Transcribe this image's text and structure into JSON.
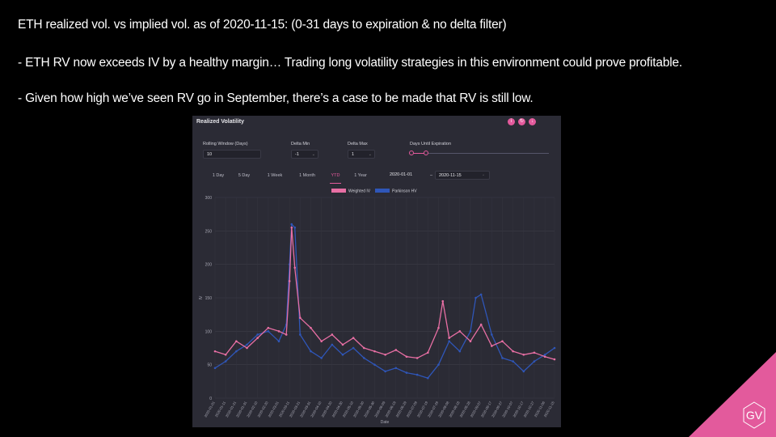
{
  "slide": {
    "line1": "ETH realized vol. vs implied vol. as of 2020-11-15: (0-31 days to expiration & no delta filter)",
    "line2": "- ETH RV now exceeds IV by a healthy margin… Trading long volatility strategies in this environment could prove profitable.",
    "line3": "- Given how high we’ve seen RV go in September, there’s a case to be made that RV is still low."
  },
  "panel": {
    "title": "Realized Volatility",
    "controls": {
      "rolling_label": "Rolling Window (Days)",
      "rolling_value": "10",
      "delta_min_label": "Delta Min",
      "delta_min_value": "-1",
      "delta_max_label": "Delta Max",
      "delta_max_value": "1",
      "days_label": "Days Until Expiration"
    },
    "ranges": [
      "1 Day",
      "5 Day",
      "1 Week",
      "1 Month",
      "YTD",
      "1 Year"
    ],
    "active_range": "YTD",
    "date_from": "2020-01-01",
    "date_sep": "–",
    "date_to": "2020-11-15"
  },
  "logo": {
    "text": "GV",
    "color": "#e35a9c"
  },
  "chart_data": {
    "type": "line",
    "title": "",
    "xlabel": "Date",
    "ylabel": "IV",
    "ylim": [
      0,
      300
    ],
    "yticks": [
      0,
      50,
      100,
      150,
      200,
      250,
      300
    ],
    "grid": true,
    "legend_position": "top-center",
    "x_start": "2020-01-01",
    "x_end": "2020-11-15",
    "x_ticks": [
      "2020-01-01",
      "2020-01-11",
      "2020-01-21",
      "2020-01-31",
      "2020-02-10",
      "2020-02-20",
      "2020-03-01",
      "2020-03-11",
      "2020-03-21",
      "2020-03-31",
      "2020-04-10",
      "2020-04-20",
      "2020-04-30",
      "2020-05-10",
      "2020-05-20",
      "2020-05-30",
      "2020-06-09",
      "2020-06-19",
      "2020-06-29",
      "2020-07-09",
      "2020-07-19",
      "2020-07-29",
      "2020-08-08",
      "2020-08-18",
      "2020-08-28",
      "2020-09-07",
      "2020-09-17",
      "2020-09-27",
      "2020-10-07",
      "2020-10-17",
      "2020-10-27",
      "2020-11-06",
      "2020-11-15"
    ],
    "series": [
      {
        "name": "Weighted IV",
        "color": "#e86fa4",
        "x": [
          "2020-01-01",
          "2020-01-11",
          "2020-01-21",
          "2020-01-31",
          "2020-02-10",
          "2020-02-20",
          "2020-03-01",
          "2020-03-08",
          "2020-03-11",
          "2020-03-13",
          "2020-03-16",
          "2020-03-21",
          "2020-03-31",
          "2020-04-10",
          "2020-04-20",
          "2020-04-30",
          "2020-05-10",
          "2020-05-20",
          "2020-05-30",
          "2020-06-09",
          "2020-06-19",
          "2020-06-29",
          "2020-07-09",
          "2020-07-19",
          "2020-07-29",
          "2020-08-02",
          "2020-08-08",
          "2020-08-18",
          "2020-08-28",
          "2020-09-07",
          "2020-09-17",
          "2020-09-27",
          "2020-10-07",
          "2020-10-17",
          "2020-10-27",
          "2020-11-06",
          "2020-11-15"
        ],
        "y": [
          70,
          65,
          85,
          75,
          90,
          105,
          100,
          95,
          175,
          255,
          195,
          120,
          105,
          85,
          95,
          80,
          90,
          75,
          70,
          65,
          72,
          62,
          60,
          68,
          105,
          145,
          90,
          100,
          85,
          110,
          78,
          85,
          70,
          65,
          68,
          62,
          58
        ]
      },
      {
        "name": "Parkinson HV",
        "color": "#2f56b8",
        "x": [
          "2020-01-01",
          "2020-01-11",
          "2020-01-21",
          "2020-01-31",
          "2020-02-10",
          "2020-02-20",
          "2020-03-01",
          "2020-03-08",
          "2020-03-11",
          "2020-03-13",
          "2020-03-16",
          "2020-03-21",
          "2020-03-31",
          "2020-04-10",
          "2020-04-20",
          "2020-04-30",
          "2020-05-10",
          "2020-05-20",
          "2020-05-30",
          "2020-06-09",
          "2020-06-19",
          "2020-06-29",
          "2020-07-09",
          "2020-07-19",
          "2020-07-29",
          "2020-08-08",
          "2020-08-18",
          "2020-08-28",
          "2020-09-02",
          "2020-09-07",
          "2020-09-17",
          "2020-09-27",
          "2020-10-07",
          "2020-10-17",
          "2020-10-27",
          "2020-11-06",
          "2020-11-15"
        ],
        "y": [
          45,
          55,
          70,
          80,
          95,
          100,
          85,
          110,
          200,
          260,
          255,
          95,
          70,
          60,
          80,
          65,
          75,
          60,
          50,
          40,
          45,
          38,
          35,
          30,
          50,
          85,
          70,
          100,
          150,
          155,
          95,
          60,
          55,
          40,
          55,
          65,
          75
        ]
      }
    ]
  }
}
